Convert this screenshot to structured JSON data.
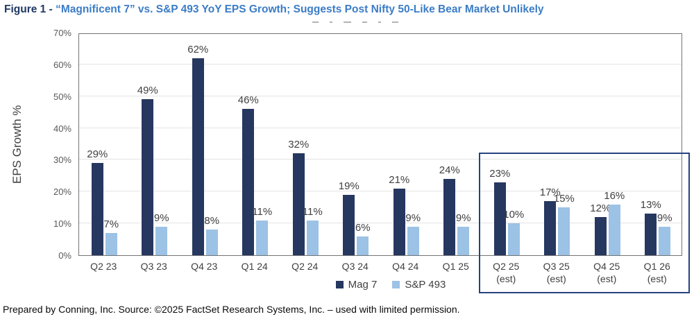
{
  "title": {
    "prefix": "Figure 1 - ",
    "main": "“Magnificent 7” vs. S&P 493 YoY EPS Growth; Suggests Post Nifty 50-Like Bear Market Unlikely"
  },
  "footer": "Prepared by Conning, Inc. Source: ©2025 FactSet Research Systems, Inc. – used with limited permission.",
  "colors": {
    "mag7": "#263760",
    "sp493": "#9CC2E5",
    "title_prefix": "#1F3864",
    "title_main": "#3B7CC6",
    "highlight_box": "#26427E",
    "gridline": "#E3E3E3",
    "plot_border": "#737373",
    "data_label": "#404040",
    "tick_label": "#595959"
  },
  "chart_data": {
    "type": "bar",
    "title": "",
    "ylabel": "EPS Growth %",
    "xlabel": "",
    "ylim": [
      0,
      70
    ],
    "ytick_step": 10,
    "ytick_suffix": "%",
    "grid": "horizontal",
    "legend_position": "bottom-center",
    "categories": [
      {
        "label": "Q2 23",
        "sub": ""
      },
      {
        "label": "Q3 23",
        "sub": ""
      },
      {
        "label": "Q4 23",
        "sub": ""
      },
      {
        "label": "Q1 24",
        "sub": ""
      },
      {
        "label": "Q2 24",
        "sub": ""
      },
      {
        "label": "Q3 24",
        "sub": ""
      },
      {
        "label": "Q4 24",
        "sub": ""
      },
      {
        "label": "Q1 25",
        "sub": ""
      },
      {
        "label": "Q2 25",
        "sub": "(est)"
      },
      {
        "label": "Q3 25",
        "sub": "(est)"
      },
      {
        "label": "Q4 25",
        "sub": "(est)"
      },
      {
        "label": "Q1 26",
        "sub": "(est)"
      }
    ],
    "series": [
      {
        "name": "Mag 7",
        "key": "mag7",
        "values": [
          29,
          49,
          62,
          46,
          32,
          19,
          21,
          24,
          23,
          17,
          12,
          13
        ]
      },
      {
        "name": "S&P 493",
        "key": "sp493",
        "values": [
          7,
          9,
          8,
          11,
          11,
          6,
          9,
          9,
          10,
          15,
          16,
          9
        ]
      }
    ],
    "data_label_suffix": "%",
    "highlight": {
      "meaning": "estimated quarters outlined",
      "from_category_index": 8,
      "to_category_index": 11
    }
  }
}
